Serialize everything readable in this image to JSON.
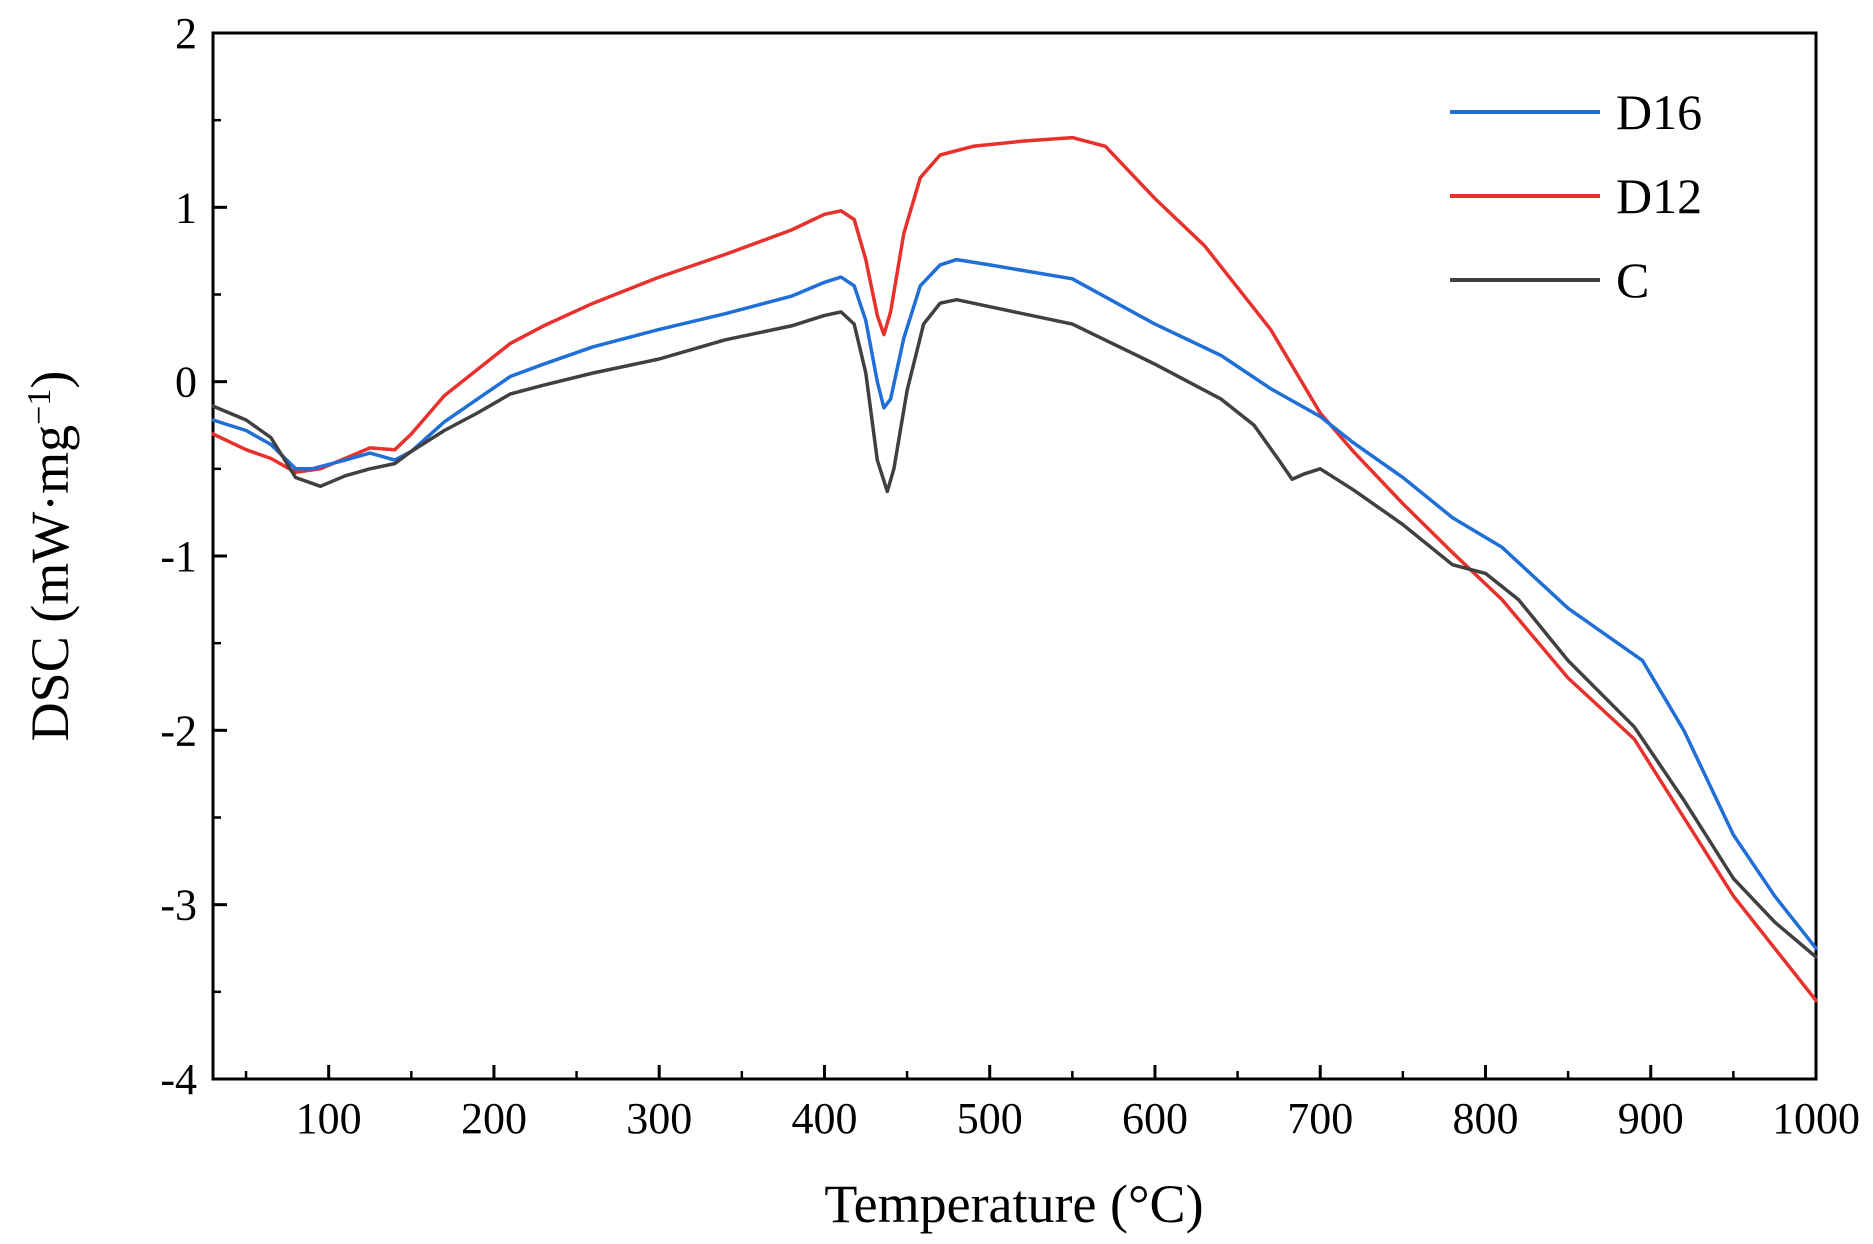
{
  "chart_data": {
    "type": "line",
    "title": "",
    "xlabel": "Temperature (°C)",
    "ylabel_main": "DSC (mW·mg",
    "ylabel_sup": "−1",
    "ylabel_close": ")",
    "xlim": [
      30,
      1000
    ],
    "ylim": [
      -4,
      2
    ],
    "x_ticks": [
      100,
      200,
      300,
      400,
      500,
      600,
      700,
      800,
      900,
      1000
    ],
    "x_tick_labels": [
      "100",
      "200",
      "300",
      "400",
      "500",
      "600",
      "700",
      "800",
      "900",
      "1000"
    ],
    "y_ticks": [
      -4,
      -3,
      -2,
      -1,
      0,
      1,
      2
    ],
    "y_tick_labels": [
      "-4",
      "-3",
      "-2",
      "-1",
      "0",
      "1",
      "2"
    ],
    "grid": false,
    "legend_position": "top-right",
    "series": [
      {
        "name": "D16",
        "color": "#1f6fd6",
        "points": [
          [
            30,
            -0.22
          ],
          [
            50,
            -0.28
          ],
          [
            65,
            -0.36
          ],
          [
            80,
            -0.5
          ],
          [
            90,
            -0.5
          ],
          [
            110,
            -0.45
          ],
          [
            125,
            -0.41
          ],
          [
            140,
            -0.45
          ],
          [
            150,
            -0.4
          ],
          [
            170,
            -0.23
          ],
          [
            190,
            -0.1
          ],
          [
            210,
            0.03
          ],
          [
            230,
            0.1
          ],
          [
            260,
            0.2
          ],
          [
            300,
            0.3
          ],
          [
            340,
            0.39
          ],
          [
            380,
            0.49
          ],
          [
            400,
            0.57
          ],
          [
            410,
            0.6
          ],
          [
            418,
            0.55
          ],
          [
            425,
            0.35
          ],
          [
            432,
            0.0
          ],
          [
            436,
            -0.15
          ],
          [
            440,
            -0.1
          ],
          [
            448,
            0.25
          ],
          [
            458,
            0.55
          ],
          [
            470,
            0.67
          ],
          [
            480,
            0.7
          ],
          [
            500,
            0.67
          ],
          [
            550,
            0.59
          ],
          [
            600,
            0.33
          ],
          [
            640,
            0.15
          ],
          [
            670,
            -0.04
          ],
          [
            700,
            -0.2
          ],
          [
            720,
            -0.35
          ],
          [
            750,
            -0.55
          ],
          [
            780,
            -0.78
          ],
          [
            810,
            -0.95
          ],
          [
            850,
            -1.3
          ],
          [
            895,
            -1.6
          ],
          [
            920,
            -2.0
          ],
          [
            950,
            -2.6
          ],
          [
            975,
            -2.95
          ],
          [
            1000,
            -3.25
          ]
        ]
      },
      {
        "name": "D12",
        "color": "#e8312c",
        "points": [
          [
            30,
            -0.3
          ],
          [
            50,
            -0.39
          ],
          [
            65,
            -0.44
          ],
          [
            80,
            -0.52
          ],
          [
            95,
            -0.5
          ],
          [
            110,
            -0.44
          ],
          [
            125,
            -0.38
          ],
          [
            140,
            -0.39
          ],
          [
            150,
            -0.3
          ],
          [
            170,
            -0.08
          ],
          [
            190,
            0.07
          ],
          [
            210,
            0.22
          ],
          [
            230,
            0.32
          ],
          [
            260,
            0.45
          ],
          [
            300,
            0.6
          ],
          [
            340,
            0.73
          ],
          [
            380,
            0.87
          ],
          [
            400,
            0.96
          ],
          [
            410,
            0.98
          ],
          [
            418,
            0.93
          ],
          [
            425,
            0.7
          ],
          [
            432,
            0.38
          ],
          [
            436,
            0.27
          ],
          [
            440,
            0.4
          ],
          [
            448,
            0.85
          ],
          [
            458,
            1.17
          ],
          [
            470,
            1.3
          ],
          [
            490,
            1.35
          ],
          [
            520,
            1.38
          ],
          [
            550,
            1.4
          ],
          [
            570,
            1.35
          ],
          [
            600,
            1.05
          ],
          [
            630,
            0.78
          ],
          [
            670,
            0.3
          ],
          [
            700,
            -0.18
          ],
          [
            720,
            -0.4
          ],
          [
            750,
            -0.7
          ],
          [
            780,
            -0.98
          ],
          [
            810,
            -1.25
          ],
          [
            850,
            -1.7
          ],
          [
            890,
            -2.05
          ],
          [
            920,
            -2.5
          ],
          [
            950,
            -2.95
          ],
          [
            975,
            -3.25
          ],
          [
            1000,
            -3.55
          ]
        ]
      },
      {
        "name": "C",
        "color": "#404040",
        "points": [
          [
            30,
            -0.14
          ],
          [
            50,
            -0.22
          ],
          [
            65,
            -0.32
          ],
          [
            80,
            -0.55
          ],
          [
            95,
            -0.6
          ],
          [
            110,
            -0.54
          ],
          [
            125,
            -0.5
          ],
          [
            140,
            -0.47
          ],
          [
            150,
            -0.4
          ],
          [
            170,
            -0.28
          ],
          [
            190,
            -0.18
          ],
          [
            210,
            -0.07
          ],
          [
            230,
            -0.02
          ],
          [
            260,
            0.05
          ],
          [
            300,
            0.13
          ],
          [
            340,
            0.24
          ],
          [
            380,
            0.32
          ],
          [
            400,
            0.38
          ],
          [
            410,
            0.4
          ],
          [
            418,
            0.33
          ],
          [
            425,
            0.05
          ],
          [
            432,
            -0.45
          ],
          [
            438,
            -0.63
          ],
          [
            442,
            -0.5
          ],
          [
            450,
            -0.05
          ],
          [
            460,
            0.33
          ],
          [
            470,
            0.45
          ],
          [
            480,
            0.47
          ],
          [
            500,
            0.43
          ],
          [
            550,
            0.33
          ],
          [
            600,
            0.1
          ],
          [
            640,
            -0.1
          ],
          [
            660,
            -0.25
          ],
          [
            675,
            -0.45
          ],
          [
            683,
            -0.56
          ],
          [
            690,
            -0.53
          ],
          [
            700,
            -0.5
          ],
          [
            720,
            -0.62
          ],
          [
            750,
            -0.82
          ],
          [
            780,
            -1.05
          ],
          [
            800,
            -1.1
          ],
          [
            820,
            -1.25
          ],
          [
            850,
            -1.6
          ],
          [
            890,
            -1.98
          ],
          [
            920,
            -2.4
          ],
          [
            950,
            -2.85
          ],
          [
            975,
            -3.1
          ],
          [
            1000,
            -3.3
          ]
        ]
      }
    ]
  }
}
